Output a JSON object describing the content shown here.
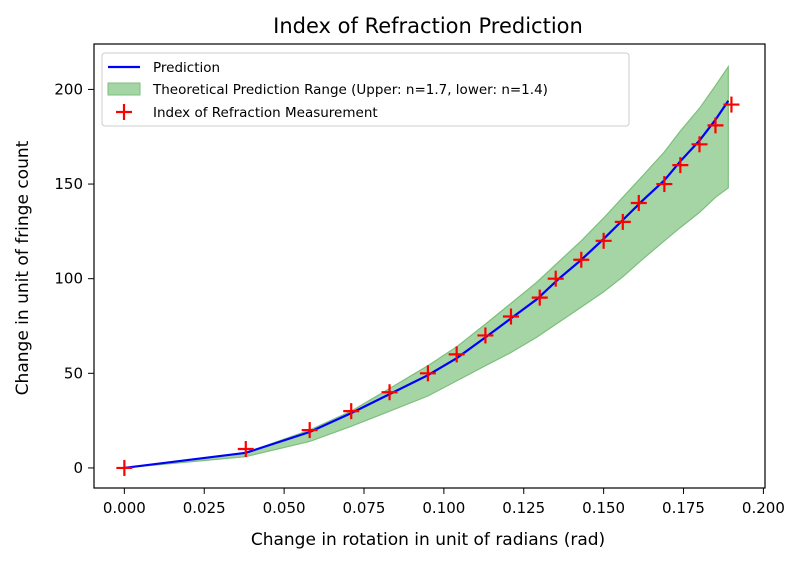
{
  "chart_data": {
    "type": "line",
    "title": "Index of Refraction Prediction",
    "xlabel": "Change in rotation in unit of radians (rad)",
    "ylabel": "Change in unit of fringe count",
    "xlim": [
      -0.0095,
      0.2005
    ],
    "ylim": [
      -10.6,
      224
    ],
    "xticks": [
      0.0,
      0.025,
      0.05,
      0.075,
      0.1,
      0.125,
      0.15,
      0.175,
      0.2
    ],
    "xtick_labels": [
      "0.000",
      "0.025",
      "0.050",
      "0.075",
      "0.100",
      "0.125",
      "0.150",
      "0.175",
      "0.200"
    ],
    "yticks": [
      0,
      50,
      100,
      150,
      200
    ],
    "ytick_labels": [
      "0",
      "50",
      "100",
      "150",
      "200"
    ],
    "grid": false,
    "legend_position": "upper-left",
    "colors": {
      "prediction": "#0000ff",
      "range_fill": "#a5d4a5",
      "range_edge": "#7dbf7d",
      "measurement": "#ff0000"
    },
    "series": [
      {
        "name": "Prediction",
        "kind": "line",
        "x": [
          0.0,
          0.038,
          0.058,
          0.071,
          0.083,
          0.095,
          0.104,
          0.113,
          0.121,
          0.129,
          0.136,
          0.143,
          0.15,
          0.156,
          0.162,
          0.169,
          0.174,
          0.18,
          0.185,
          0.189
        ],
        "y": [
          0,
          8,
          19,
          29,
          39,
          49,
          58,
          69,
          79,
          89,
          100,
          110,
          121,
          131,
          141,
          152,
          162,
          173,
          184,
          194
        ]
      },
      {
        "name": "Theoretical Prediction Range (Upper: n=1.7, lower: n=1.4)",
        "kind": "band",
        "x": [
          0.0,
          0.038,
          0.058,
          0.071,
          0.083,
          0.095,
          0.104,
          0.113,
          0.121,
          0.129,
          0.136,
          0.143,
          0.15,
          0.156,
          0.162,
          0.169,
          0.174,
          0.18,
          0.185,
          0.189
        ],
        "upper": [
          0,
          8,
          20,
          30,
          42,
          54,
          64,
          76,
          87,
          98,
          109,
          120,
          132,
          143,
          154,
          167,
          178,
          190,
          202,
          212
        ],
        "lower": [
          0,
          6,
          14,
          22,
          30,
          38,
          46,
          54,
          61,
          69,
          77,
          85,
          93,
          101,
          110,
          120,
          127,
          135,
          143,
          148
        ]
      },
      {
        "name": "Index of Refraction Measurement",
        "kind": "scatter",
        "marker": "+",
        "x": [
          0.0,
          0.038,
          0.058,
          0.071,
          0.083,
          0.095,
          0.104,
          0.113,
          0.121,
          0.13,
          0.135,
          0.143,
          0.15,
          0.156,
          0.161,
          0.169,
          0.174,
          0.18,
          0.185,
          0.19
        ],
        "y": [
          0,
          10,
          20,
          30,
          40,
          50,
          60,
          70,
          80,
          90,
          100,
          110,
          120,
          130,
          140,
          150,
          160,
          171,
          181,
          192
        ]
      }
    ]
  }
}
